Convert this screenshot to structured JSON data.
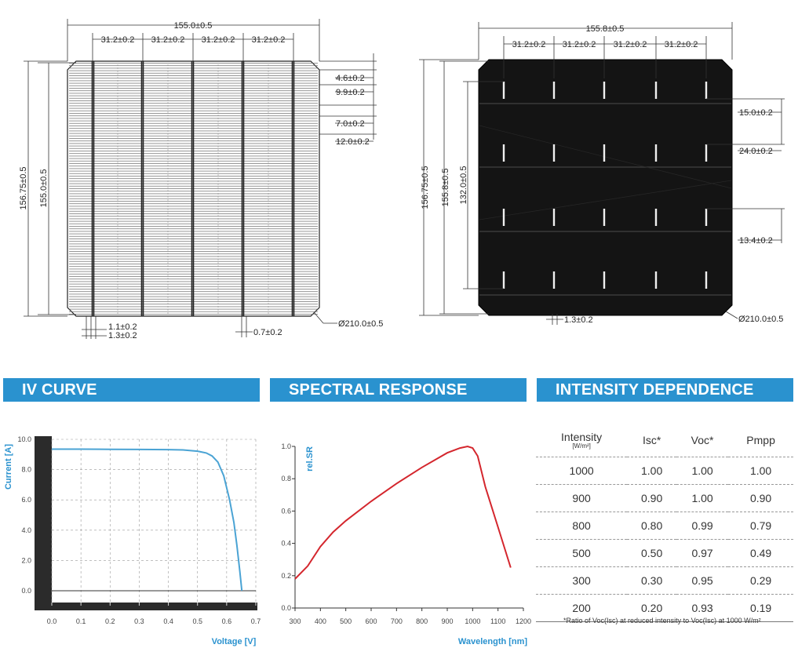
{
  "drawing_left": {
    "width_total": "155.0±0.5",
    "segments": [
      "31.2±0.2",
      "31.2±0.2",
      "31.2±0.2",
      "31.2±0.2"
    ],
    "right_dims": [
      "4.6±0.2",
      "9.9±0.2",
      "7.0±0.2",
      "12.0±0.2"
    ],
    "height_outer": "156.75±0.5",
    "height_inner": "155.0±0.5",
    "bottom_dims": [
      "1.1±0.2",
      "1.3±0.2",
      "0.7±0.2"
    ],
    "diameter": "Ø210.0±0.5"
  },
  "drawing_right": {
    "width_total": "155.8±0.5",
    "segments": [
      "31.2±0.2",
      "31.2±0.2",
      "31.2±0.2",
      "31.2±0.2"
    ],
    "right_dims": [
      "15.0±0.2",
      "24.0±0.2",
      "13.4±0.2"
    ],
    "height_outer": "156.75±0.5",
    "height_mid": "155.8±0.5",
    "height_inner": "132.0±0.5",
    "bottom_dim": "1.3±0.2",
    "diameter": "Ø210.0±0.5"
  },
  "sections": {
    "iv": "IV CURVE",
    "sr": "SPECTRAL RESPONSE",
    "id": "INTENSITY DEPENDENCE"
  },
  "colors": {
    "brand": "#2a92cf",
    "iv_line": "#4aa3d4",
    "sr_line": "#d4262d",
    "cell_dark": "#141414"
  },
  "chart_data": [
    {
      "type": "line",
      "xlabel": "Voltage [V]",
      "ylabel": "Current [A]",
      "xlim": [
        0.0,
        0.7
      ],
      "ylim": [
        0.0,
        10.0
      ],
      "x_ticks": [
        "0.0",
        "0.1",
        "0.2",
        "0.3",
        "0.4",
        "0.5",
        "0.6",
        "0.7"
      ],
      "y_ticks": [
        "0.0",
        "2.0",
        "4.0",
        "6.0",
        "8.0",
        "10.0"
      ],
      "grid": true,
      "series": [
        {
          "x": [
            0.0,
            0.1,
            0.2,
            0.3,
            0.4,
            0.45,
            0.5,
            0.53,
            0.55,
            0.57,
            0.59,
            0.61,
            0.625,
            0.635,
            0.645,
            0.652
          ],
          "y": [
            9.35,
            9.35,
            9.34,
            9.33,
            9.32,
            9.3,
            9.22,
            9.1,
            8.9,
            8.5,
            7.6,
            6.0,
            4.5,
            3.0,
            1.3,
            0.0
          ]
        }
      ]
    },
    {
      "type": "line",
      "xlabel": "Wavelength [nm]",
      "ylabel": "rel.SR",
      "xlim": [
        300,
        1200
      ],
      "ylim": [
        0.0,
        1.0
      ],
      "x_ticks": [
        "300",
        "400",
        "500",
        "600",
        "700",
        "800",
        "900",
        "1000",
        "1100",
        "1200"
      ],
      "y_ticks": [
        "0.0",
        "0.2",
        "0.4",
        "0.6",
        "0.8",
        "1.0"
      ],
      "grid": false,
      "series": [
        {
          "x": [
            300,
            350,
            400,
            450,
            500,
            600,
            700,
            800,
            900,
            950,
            980,
            1000,
            1020,
            1050,
            1100,
            1150
          ],
          "y": [
            0.18,
            0.26,
            0.38,
            0.47,
            0.54,
            0.66,
            0.77,
            0.87,
            0.96,
            0.99,
            1.0,
            0.99,
            0.94,
            0.75,
            0.5,
            0.25
          ]
        }
      ]
    },
    {
      "type": "table",
      "columns": [
        {
          "label": "Intensity",
          "sub": "[W/m²]"
        },
        {
          "label": "Isc*"
        },
        {
          "label": "Voc*"
        },
        {
          "label": "Pmpp"
        }
      ],
      "rows": [
        [
          "1000",
          "1.00",
          "1.00",
          "1.00"
        ],
        [
          "900",
          "0.90",
          "1.00",
          "0.90"
        ],
        [
          "800",
          "0.80",
          "0.99",
          "0.79"
        ],
        [
          "500",
          "0.50",
          "0.97",
          "0.49"
        ],
        [
          "300",
          "0.30",
          "0.95",
          "0.29"
        ],
        [
          "200",
          "0.20",
          "0.93",
          "0.19"
        ]
      ],
      "footnote": "*Ratio of Voc(Isc) at reduced intensity to Voc(Isc) at 1000 W/m²"
    }
  ]
}
